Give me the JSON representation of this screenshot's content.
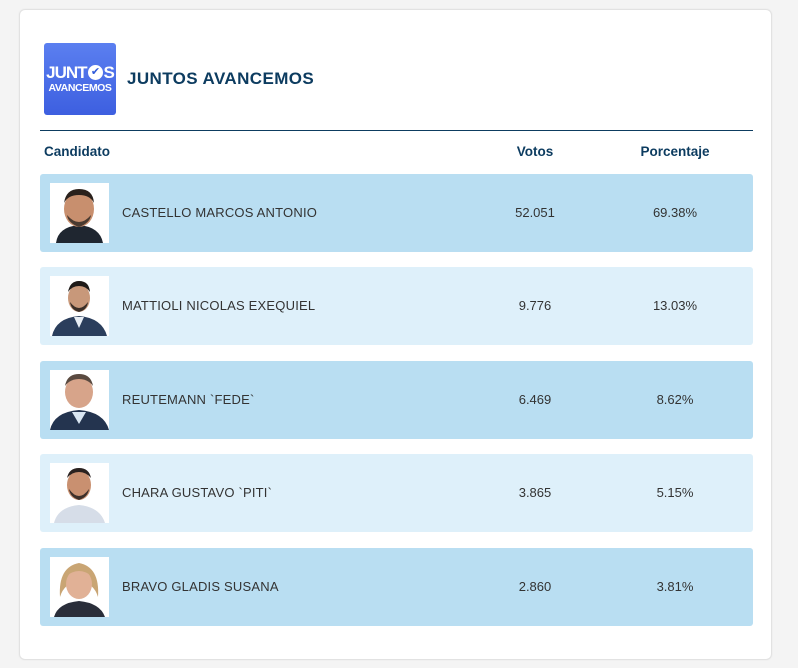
{
  "party": {
    "logo_line1": "JUNT",
    "logo_line1_end": "S",
    "logo_line2": "AVANCEMOS",
    "name": "JUNTOS AVANCEMOS"
  },
  "columns": {
    "candidate": "Candidato",
    "votes": "Votos",
    "percent": "Porcentaje"
  },
  "candidates": [
    {
      "name": "CASTELLO MARCOS ANTONIO",
      "votes": "52.051",
      "percent": "69.38%"
    },
    {
      "name": "MATTIOLI NICOLAS EXEQUIEL",
      "votes": "9.776",
      "percent": "13.03%"
    },
    {
      "name": "REUTEMANN `FEDE`",
      "votes": "6.469",
      "percent": "8.62%"
    },
    {
      "name": "CHARA GUSTAVO `PITI`",
      "votes": "3.865",
      "percent": "5.15%"
    },
    {
      "name": "BRAVO GLADIS SUSANA",
      "votes": "2.860",
      "percent": "3.81%"
    }
  ],
  "colors": {
    "row_dark": "#b9def2",
    "row_light": "#def0fa",
    "heading": "#0d3c60",
    "logo": "#3d5fe0"
  }
}
